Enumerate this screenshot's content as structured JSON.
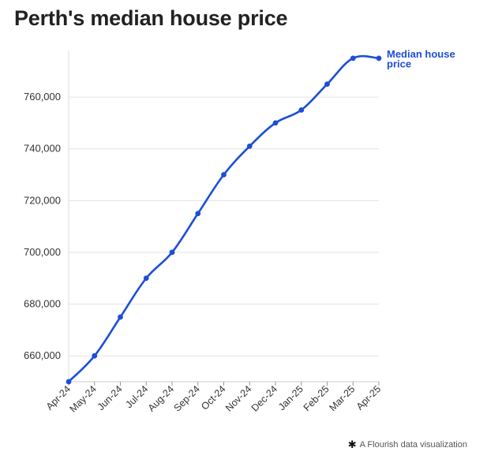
{
  "title": "Perth's median house price",
  "credit": {
    "icon": "flourish-asterisk-icon",
    "text": "A Flourish data visualization"
  },
  "chart_data": {
    "type": "line",
    "title": "Perth's median house price",
    "xlabel": "",
    "ylabel": "",
    "categories": [
      "Apr-24",
      "May-24",
      "Jun-24",
      "Jul-24",
      "Aug-24",
      "Sep-24",
      "Oct-24",
      "Nov-24",
      "Dec-24",
      "Jan-25",
      "Feb-25",
      "Mar-25",
      "Apr-25"
    ],
    "series": [
      {
        "name": "Median house price",
        "label_lines": [
          "Median house",
          "price"
        ],
        "color": "#1d4ed8",
        "values": [
          650000,
          660000,
          675000,
          690000,
          700000,
          715000,
          730000,
          741000,
          750000,
          755000,
          765000,
          775000,
          775000
        ]
      }
    ],
    "yticks": [
      660000,
      680000,
      700000,
      720000,
      740000,
      760000
    ],
    "ytick_labels": [
      "660,000",
      "680,000",
      "700,000",
      "720,000",
      "740,000",
      "760,000"
    ],
    "ylim": [
      650000,
      778000
    ],
    "grid": true,
    "legend": "direct-label-right"
  }
}
